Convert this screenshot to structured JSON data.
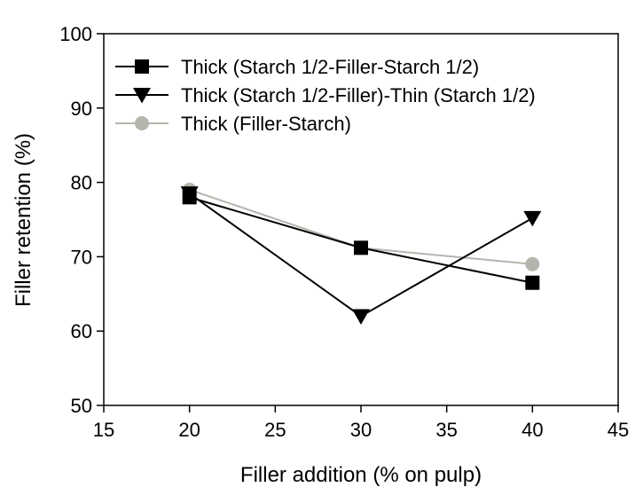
{
  "chart_data": {
    "type": "line",
    "xlabel": "Filler addition (% on pulp)",
    "ylabel": "Filler retention (%)",
    "xlim": [
      15,
      45
    ],
    "ylim": [
      50,
      100
    ],
    "x_ticks": [
      "15",
      "20",
      "25",
      "30",
      "35",
      "40",
      "45"
    ],
    "y_ticks": [
      "50",
      "60",
      "70",
      "80",
      "90",
      "100"
    ],
    "grid": false,
    "legend_position": "top-left",
    "series": [
      {
        "name": "Thick (Starch 1/2-Filler-Starch 1/2)",
        "marker": "square",
        "color": "#000000",
        "x": [
          20,
          30,
          40
        ],
        "y": [
          78.0,
          71.2,
          66.5
        ]
      },
      {
        "name": "Thick (Starch 1/2-Filler)-Thin (Starch 1/2)",
        "marker": "triangle-down",
        "color": "#000000",
        "x": [
          20,
          30,
          40
        ],
        "y": [
          78.5,
          62.0,
          75.2
        ]
      },
      {
        "name": "Thick (Filler-Starch)",
        "marker": "circle",
        "color": "#b5b5ad",
        "x": [
          20,
          30,
          40
        ],
        "y": [
          79.0,
          71.2,
          69.0
        ]
      }
    ]
  }
}
